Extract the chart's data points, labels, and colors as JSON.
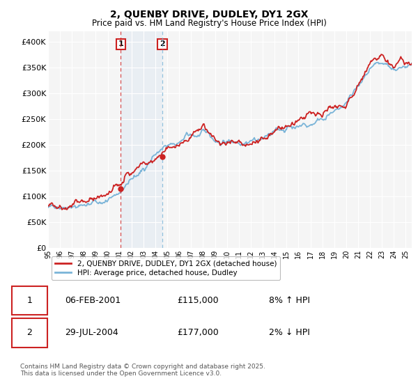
{
  "title": "2, QUENBY DRIVE, DUDLEY, DY1 2GX",
  "subtitle": "Price paid vs. HM Land Registry's House Price Index (HPI)",
  "ylim": [
    0,
    420000
  ],
  "yticks": [
    0,
    50000,
    100000,
    150000,
    200000,
    250000,
    300000,
    350000,
    400000
  ],
  "ytick_labels": [
    "£0",
    "£50K",
    "£100K",
    "£150K",
    "£200K",
    "£250K",
    "£300K",
    "£350K",
    "£400K"
  ],
  "hpi_color": "#7ab4d8",
  "price_color": "#cc2222",
  "sale1_t": 2001.096,
  "sale1_price": 115000,
  "sale1_label": "1",
  "sale2_t": 2004.575,
  "sale2_price": 177000,
  "sale2_label": "2",
  "legend_property": "2, QUENBY DRIVE, DUDLEY, DY1 2GX (detached house)",
  "legend_hpi": "HPI: Average price, detached house, Dudley",
  "table_row1": [
    "1",
    "06-FEB-2001",
    "£115,000",
    "8% ↑ HPI"
  ],
  "table_row2": [
    "2",
    "29-JUL-2004",
    "£177,000",
    "2% ↓ HPI"
  ],
  "footnote": "Contains HM Land Registry data © Crown copyright and database right 2025.\nThis data is licensed under the Open Government Licence v3.0.",
  "background_color": "#ffffff",
  "plot_bg_color": "#f5f5f5",
  "grid_color": "#ffffff",
  "span_color": "#c8dcf0",
  "xstart": 1995.0,
  "xend": 2025.5
}
